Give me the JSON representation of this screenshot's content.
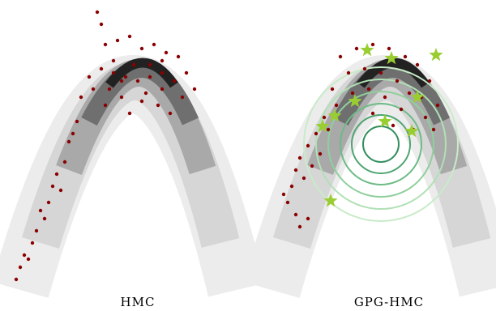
{
  "chart_data": [
    {
      "type": "scatter",
      "title": "HMC",
      "xlim": [
        0,
        300
      ],
      "ylim": [
        0,
        360
      ],
      "series": [
        {
          "color": "#8b0000",
          "x": [
            120,
            125,
            130,
            145,
            160,
            175,
            190,
            205,
            220,
            230,
            215,
            200,
            185,
            170,
            155,
            140,
            125,
            110,
            100,
            150,
            175,
            195,
            210,
            225,
            160,
            130,
            95,
            85,
            80,
            70,
            75,
            60,
            55,
            45,
            40,
            30,
            25,
            20,
            35,
            50,
            65,
            90,
            115,
            140,
            165,
            185,
            200,
            150,
            135,
            240,
            200,
            180
          ],
          "y": [
            345,
            330,
            305,
            310,
            315,
            300,
            305,
            295,
            290,
            270,
            260,
            250,
            265,
            260,
            265,
            270,
            275,
            265,
            240,
            240,
            235,
            230,
            220,
            240,
            220,
            230,
            210,
            185,
            160,
            145,
            125,
            110,
            90,
            75,
            60,
            45,
            30,
            15,
            40,
            100,
            130,
            195,
            250,
            285,
            280,
            280,
            270,
            260,
            250,
            250,
            285,
            245
          ]
        }
      ]
    },
    {
      "type": "scatter",
      "title": "GPG-HMC",
      "xlim": [
        0,
        300
      ],
      "ylim": [
        0,
        360
      ],
      "series": [
        {
          "color": "#8b0000",
          "x": [
            110,
            130,
            150,
            170,
            190,
            205,
            220,
            230,
            215,
            200,
            185,
            165,
            145,
            125,
            105,
            90,
            80,
            70,
            60,
            55,
            50,
            45,
            55,
            60,
            70,
            40,
            85,
            100,
            120,
            140,
            160,
            180,
            195,
            210,
            225,
            175,
            150,
            65,
            75,
            95
          ],
          "y": [
            290,
            300,
            305,
            300,
            290,
            280,
            260,
            230,
            215,
            200,
            225,
            240,
            250,
            245,
            230,
            215,
            195,
            180,
            165,
            150,
            130,
            110,
            95,
            80,
            90,
            120,
            170,
            250,
            270,
            275,
            270,
            260,
            245,
            240,
            200,
            205,
            220,
            140,
            155,
            200
          ]
        },
        {
          "color": "#9acd32",
          "marker": "star",
          "x": [
            143,
            173,
            228,
            128,
            103,
            88,
            165,
            205,
            198,
            98
          ],
          "y": [
            298,
            288,
            292,
            235,
            217,
            204,
            210,
            240,
            198,
            112
          ]
        }
      ]
    }
  ]
}
